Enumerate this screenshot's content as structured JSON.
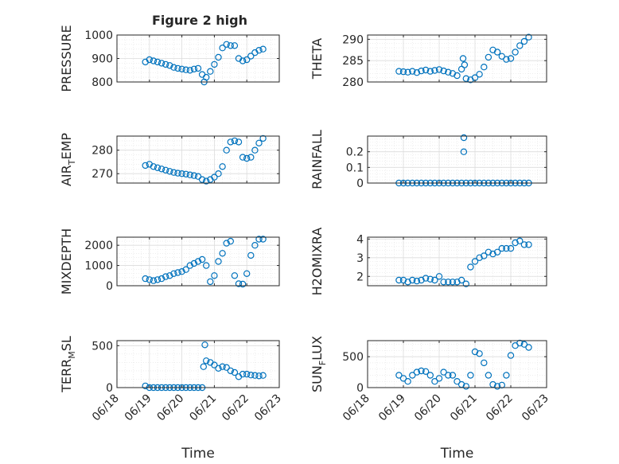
{
  "figure": {
    "title": "Figure 2 high",
    "marker_color": "#0072BD",
    "shared_xlabel": "Time",
    "x_ticks": [
      "06/18",
      "06/19",
      "06/20",
      "06/21",
      "06/22",
      "06/23"
    ]
  },
  "chart_data": [
    {
      "type": "scatter",
      "marker": "circle",
      "ylabel": "PRESSURE",
      "ylim": [
        800,
        1000
      ],
      "yticks": [
        800,
        900,
        1000
      ],
      "ytick_labels": [
        "800",
        "900",
        "1000"
      ],
      "xlim": [
        "06/18",
        "06/23"
      ],
      "grid": "on",
      "minor_grid": "on",
      "x": [
        "2021-06-18T21:00",
        "2021-06-19T00:00",
        "2021-06-19T03:00",
        "2021-06-19T06:00",
        "2021-06-19T09:00",
        "2021-06-19T12:00",
        "2021-06-19T15:00",
        "2021-06-19T18:00",
        "2021-06-19T21:00",
        "2021-06-20T00:00",
        "2021-06-20T03:00",
        "2021-06-20T06:00",
        "2021-06-20T09:00",
        "2021-06-20T12:00",
        "2021-06-20T15:00",
        "2021-06-20T16:30",
        "2021-06-20T18:00",
        "2021-06-20T21:00",
        "2021-06-21T00:00",
        "2021-06-21T03:00",
        "2021-06-21T06:00",
        "2021-06-21T09:00",
        "2021-06-21T12:00",
        "2021-06-21T15:00",
        "2021-06-21T18:00",
        "2021-06-21T21:00",
        "2021-06-22T00:00",
        "2021-06-22T03:00",
        "2021-06-22T06:00",
        "2021-06-22T09:00",
        "2021-06-22T12:00"
      ],
      "y": [
        885,
        895,
        890,
        885,
        880,
        875,
        870,
        862,
        858,
        855,
        852,
        850,
        855,
        858,
        832,
        800,
        820,
        845,
        875,
        905,
        945,
        960,
        955,
        955,
        900,
        890,
        895,
        910,
        925,
        935,
        940
      ]
    },
    {
      "type": "scatter",
      "marker": "circle",
      "ylabel": "THETA",
      "ylim": [
        280,
        291
      ],
      "yticks": [
        280,
        285,
        290
      ],
      "ytick_labels": [
        "280",
        "285",
        "290"
      ],
      "xlim": [
        "06/18",
        "06/23"
      ],
      "grid": "on",
      "minor_grid": "on",
      "x": [
        "2021-06-18T21:00",
        "2021-06-19T00:00",
        "2021-06-19T03:00",
        "2021-06-19T06:00",
        "2021-06-19T09:00",
        "2021-06-19T12:00",
        "2021-06-19T15:00",
        "2021-06-19T18:00",
        "2021-06-19T21:00",
        "2021-06-20T00:00",
        "2021-06-20T03:00",
        "2021-06-20T06:00",
        "2021-06-20T09:00",
        "2021-06-20T12:00",
        "2021-06-20T15:00",
        "2021-06-20T16:00",
        "2021-06-20T17:00",
        "2021-06-20T18:00",
        "2021-06-20T21:00",
        "2021-06-21T00:00",
        "2021-06-21T03:00",
        "2021-06-21T06:00",
        "2021-06-21T09:00",
        "2021-06-21T12:00",
        "2021-06-21T15:00",
        "2021-06-21T18:00",
        "2021-06-21T21:00",
        "2021-06-22T00:00",
        "2021-06-22T03:00",
        "2021-06-22T06:00",
        "2021-06-22T09:00",
        "2021-06-22T12:00"
      ],
      "y": [
        282.5,
        282.4,
        282.3,
        282.5,
        282.2,
        282.6,
        282.8,
        282.5,
        282.7,
        282.9,
        282.6,
        282.3,
        282.0,
        281.5,
        283.0,
        285.5,
        284.0,
        280.8,
        280.5,
        281.0,
        281.8,
        283.5,
        285.8,
        287.5,
        287.0,
        286.0,
        285.3,
        285.5,
        287.0,
        288.5,
        289.5,
        290.5
      ]
    },
    {
      "type": "scatter",
      "marker": "circle",
      "ylabel": "AIR_TEMP",
      "ylim": [
        266,
        286
      ],
      "yticks": [
        270,
        280
      ],
      "ytick_labels": [
        "270",
        "280"
      ],
      "xlim": [
        "06/18",
        "06/23"
      ],
      "grid": "on",
      "minor_grid": "on",
      "x": [
        "2021-06-18T21:00",
        "2021-06-19T00:00",
        "2021-06-19T03:00",
        "2021-06-19T06:00",
        "2021-06-19T09:00",
        "2021-06-19T12:00",
        "2021-06-19T15:00",
        "2021-06-19T18:00",
        "2021-06-19T21:00",
        "2021-06-20T00:00",
        "2021-06-20T03:00",
        "2021-06-20T06:00",
        "2021-06-20T09:00",
        "2021-06-20T12:00",
        "2021-06-20T15:00",
        "2021-06-20T18:00",
        "2021-06-20T21:00",
        "2021-06-21T00:00",
        "2021-06-21T03:00",
        "2021-06-21T06:00",
        "2021-06-21T09:00",
        "2021-06-21T12:00",
        "2021-06-21T15:00",
        "2021-06-21T18:00",
        "2021-06-21T21:00",
        "2021-06-22T00:00",
        "2021-06-22T03:00",
        "2021-06-22T06:00",
        "2021-06-22T09:00",
        "2021-06-22T12:00"
      ],
      "y": [
        273.5,
        274.0,
        273.0,
        272.5,
        272.0,
        271.5,
        271.0,
        270.5,
        270.2,
        270.0,
        269.8,
        269.5,
        269.2,
        268.8,
        267.5,
        266.8,
        267.5,
        268.5,
        270.0,
        273.0,
        280.0,
        283.5,
        284.0,
        283.5,
        277.0,
        276.5,
        277.0,
        280.0,
        283.0,
        285.0
      ]
    },
    {
      "type": "scatter",
      "marker": "circle",
      "ylabel": "RAINFALL",
      "ylim": [
        0,
        0.3
      ],
      "yticks": [
        0,
        0.1,
        0.2
      ],
      "ytick_labels": [
        "0",
        "0.1",
        "0.2"
      ],
      "xlim": [
        "06/18",
        "06/23"
      ],
      "grid": "on",
      "minor_grid": "on",
      "x": [
        "2021-06-18T21:00",
        "2021-06-19T00:00",
        "2021-06-19T03:00",
        "2021-06-19T06:00",
        "2021-06-19T09:00",
        "2021-06-19T12:00",
        "2021-06-19T15:00",
        "2021-06-19T18:00",
        "2021-06-19T21:00",
        "2021-06-20T00:00",
        "2021-06-20T03:00",
        "2021-06-20T06:00",
        "2021-06-20T09:00",
        "2021-06-20T12:00",
        "2021-06-20T15:00",
        "2021-06-20T16:30",
        "2021-06-20T16:31",
        "2021-06-20T18:00",
        "2021-06-20T21:00",
        "2021-06-21T00:00",
        "2021-06-21T03:00",
        "2021-06-21T06:00",
        "2021-06-21T09:00",
        "2021-06-21T12:00",
        "2021-06-21T15:00",
        "2021-06-21T18:00",
        "2021-06-21T21:00",
        "2021-06-22T00:00",
        "2021-06-22T03:00",
        "2021-06-22T06:00",
        "2021-06-22T09:00",
        "2021-06-22T12:00"
      ],
      "y": [
        0,
        0,
        0,
        0,
        0,
        0,
        0,
        0,
        0,
        0,
        0,
        0,
        0,
        0,
        0,
        0.2,
        0.29,
        0,
        0,
        0,
        0,
        0,
        0,
        0,
        0,
        0,
        0,
        0,
        0,
        0,
        0,
        0
      ]
    },
    {
      "type": "scatter",
      "marker": "circle",
      "ylabel": "MIXDEPTH",
      "ylim": [
        0,
        2400
      ],
      "yticks": [
        0,
        1000,
        2000
      ],
      "ytick_labels": [
        "0",
        "1000",
        "2000"
      ],
      "xlim": [
        "06/18",
        "06/23"
      ],
      "grid": "on",
      "minor_grid": "on",
      "x": [
        "2021-06-18T21:00",
        "2021-06-19T00:00",
        "2021-06-19T03:00",
        "2021-06-19T06:00",
        "2021-06-19T09:00",
        "2021-06-19T12:00",
        "2021-06-19T15:00",
        "2021-06-19T18:00",
        "2021-06-19T21:00",
        "2021-06-20T00:00",
        "2021-06-20T03:00",
        "2021-06-20T06:00",
        "2021-06-20T09:00",
        "2021-06-20T12:00",
        "2021-06-20T15:00",
        "2021-06-20T18:00",
        "2021-06-20T21:00",
        "2021-06-21T00:00",
        "2021-06-21T03:00",
        "2021-06-21T06:00",
        "2021-06-21T09:00",
        "2021-06-21T12:00",
        "2021-06-21T15:00",
        "2021-06-21T18:00",
        "2021-06-21T21:00",
        "2021-06-22T00:00",
        "2021-06-22T03:00",
        "2021-06-22T06:00",
        "2021-06-22T09:00",
        "2021-06-22T12:00"
      ],
      "y": [
        350,
        300,
        250,
        300,
        350,
        450,
        500,
        600,
        650,
        700,
        800,
        1000,
        1100,
        1200,
        1300,
        1000,
        200,
        500,
        1200,
        1600,
        2100,
        2200,
        500,
        100,
        80,
        600,
        1500,
        2000,
        2300,
        2300
      ]
    },
    {
      "type": "scatter",
      "marker": "circle",
      "ylabel": "H2OMIXRA",
      "ylim": [
        1.5,
        4.1
      ],
      "yticks": [
        2,
        3,
        4
      ],
      "ytick_labels": [
        "2",
        "3",
        "4"
      ],
      "xlim": [
        "06/18",
        "06/23"
      ],
      "grid": "on",
      "minor_grid": "on",
      "x": [
        "2021-06-18T21:00",
        "2021-06-19T00:00",
        "2021-06-19T03:00",
        "2021-06-19T06:00",
        "2021-06-19T09:00",
        "2021-06-19T12:00",
        "2021-06-19T15:00",
        "2021-06-19T18:00",
        "2021-06-19T21:00",
        "2021-06-20T00:00",
        "2021-06-20T03:00",
        "2021-06-20T06:00",
        "2021-06-20T09:00",
        "2021-06-20T12:00",
        "2021-06-20T15:00",
        "2021-06-20T18:00",
        "2021-06-20T21:00",
        "2021-06-21T00:00",
        "2021-06-21T03:00",
        "2021-06-21T06:00",
        "2021-06-21T09:00",
        "2021-06-21T12:00",
        "2021-06-21T15:00",
        "2021-06-21T18:00",
        "2021-06-21T21:00",
        "2021-06-22T00:00",
        "2021-06-22T03:00",
        "2021-06-22T06:00",
        "2021-06-22T09:00",
        "2021-06-22T12:00"
      ],
      "y": [
        1.8,
        1.8,
        1.7,
        1.8,
        1.75,
        1.8,
        1.9,
        1.85,
        1.8,
        2.0,
        1.7,
        1.7,
        1.7,
        1.7,
        1.8,
        1.6,
        2.5,
        2.8,
        3.0,
        3.1,
        3.3,
        3.2,
        3.3,
        3.5,
        3.5,
        3.5,
        3.8,
        3.9,
        3.7,
        3.7
      ]
    },
    {
      "type": "scatter",
      "marker": "circle",
      "ylabel": "TERR_MSL",
      "ylim": [
        0,
        560
      ],
      "yticks": [
        0,
        500
      ],
      "ytick_labels": [
        "0",
        "500"
      ],
      "xlim": [
        "06/18",
        "06/23"
      ],
      "grid": "on",
      "minor_grid": "on",
      "x": [
        "2021-06-18T21:00",
        "2021-06-19T00:00",
        "2021-06-19T03:00",
        "2021-06-19T06:00",
        "2021-06-19T09:00",
        "2021-06-19T12:00",
        "2021-06-19T15:00",
        "2021-06-19T18:00",
        "2021-06-19T21:00",
        "2021-06-20T00:00",
        "2021-06-20T03:00",
        "2021-06-20T06:00",
        "2021-06-20T09:00",
        "2021-06-20T12:00",
        "2021-06-20T15:00",
        "2021-06-20T16:00",
        "2021-06-20T17:00",
        "2021-06-20T18:00",
        "2021-06-20T21:00",
        "2021-06-21T00:00",
        "2021-06-21T03:00",
        "2021-06-21T06:00",
        "2021-06-21T09:00",
        "2021-06-21T12:00",
        "2021-06-21T15:00",
        "2021-06-21T18:00",
        "2021-06-21T21:00",
        "2021-06-22T00:00",
        "2021-06-22T03:00",
        "2021-06-22T06:00",
        "2021-06-22T09:00",
        "2021-06-22T12:00"
      ],
      "y": [
        20,
        0,
        0,
        0,
        0,
        0,
        0,
        0,
        0,
        0,
        0,
        0,
        0,
        0,
        0,
        250,
        510,
        320,
        300,
        270,
        230,
        250,
        240,
        200,
        180,
        130,
        160,
        160,
        150,
        145,
        140,
        145
      ]
    },
    {
      "type": "scatter",
      "marker": "circle",
      "ylabel": "SUN_FLUX",
      "ylim": [
        0,
        760
      ],
      "yticks": [
        0,
        500
      ],
      "ytick_labels": [
        "0",
        "500"
      ],
      "xlim": [
        "06/18",
        "06/23"
      ],
      "grid": "on",
      "minor_grid": "on",
      "x": [
        "2021-06-18T21:00",
        "2021-06-19T00:00",
        "2021-06-19T03:00",
        "2021-06-19T06:00",
        "2021-06-19T09:00",
        "2021-06-19T12:00",
        "2021-06-19T15:00",
        "2021-06-19T18:00",
        "2021-06-19T21:00",
        "2021-06-20T00:00",
        "2021-06-20T03:00",
        "2021-06-20T06:00",
        "2021-06-20T09:00",
        "2021-06-20T12:00",
        "2021-06-20T15:00",
        "2021-06-20T18:00",
        "2021-06-20T21:00",
        "2021-06-21T00:00",
        "2021-06-21T03:00",
        "2021-06-21T06:00",
        "2021-06-21T09:00",
        "2021-06-21T12:00",
        "2021-06-21T15:00",
        "2021-06-21T18:00",
        "2021-06-21T21:00",
        "2021-06-22T00:00",
        "2021-06-22T03:00",
        "2021-06-22T06:00",
        "2021-06-22T09:00",
        "2021-06-22T12:00"
      ],
      "y": [
        200,
        150,
        100,
        200,
        250,
        270,
        260,
        200,
        100,
        150,
        250,
        200,
        200,
        100,
        50,
        20,
        200,
        580,
        550,
        400,
        200,
        50,
        20,
        40,
        200,
        520,
        680,
        720,
        700,
        650
      ]
    }
  ]
}
